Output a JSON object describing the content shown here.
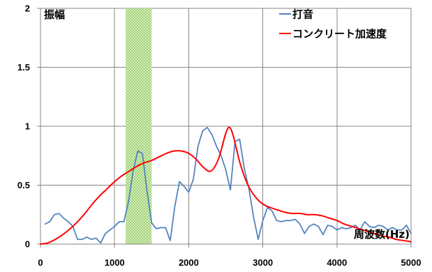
{
  "chart_data": {
    "type": "line",
    "xlabel": "周波数(Hz)",
    "ylabel": "振幅",
    "xlim": [
      0,
      5000
    ],
    "ylim": [
      0,
      2
    ],
    "x_ticks": [
      0,
      1000,
      2000,
      3000,
      4000,
      5000
    ],
    "y_ticks": [
      0,
      0.5,
      1,
      1.5,
      2
    ],
    "grid": {
      "x": true,
      "y": true
    },
    "legend": {
      "placement": "top-right"
    },
    "highlight_band": {
      "x_start": 1150,
      "x_end": 1500,
      "color": "#9fd16f"
    },
    "series": [
      {
        "name": "打音",
        "color": "#4f81bd",
        "smooth": false,
        "x": [
          62.5,
          125,
          187.5,
          250,
          312.5,
          375,
          437.5,
          500,
          562.5,
          625,
          687.5,
          750,
          812.5,
          875,
          937.5,
          1000,
          1062.5,
          1125,
          1187.5,
          1250,
          1312.5,
          1375,
          1437.5,
          1500,
          1562.5,
          1625,
          1687.5,
          1750,
          1812.5,
          1875,
          1937.5,
          2000,
          2062.5,
          2125,
          2187.5,
          2250,
          2312.5,
          2375,
          2437.5,
          2500,
          2562.5,
          2625,
          2687.5,
          2750,
          2812.5,
          2875,
          2937.5,
          3000,
          3062.5,
          3125,
          3187.5,
          3250,
          3312.5,
          3375,
          3437.5,
          3500,
          3562.5,
          3625,
          3687.5,
          3750,
          3812.5,
          3875,
          3937.5,
          4000,
          4062.5,
          4125,
          4187.5,
          4250,
          4312.5,
          4375,
          4437.5,
          4500,
          4562.5,
          4625,
          4687.5,
          4750,
          4812.5,
          4875,
          4937.5,
          5000
        ],
        "y": [
          0.17,
          0.19,
          0.25,
          0.26,
          0.22,
          0.19,
          0.15,
          0.04,
          0.04,
          0.06,
          0.04,
          0.05,
          0.01,
          0.09,
          0.12,
          0.15,
          0.19,
          0.19,
          0.36,
          0.62,
          0.79,
          0.77,
          0.45,
          0.18,
          0.13,
          0.14,
          0.14,
          0.03,
          0.32,
          0.53,
          0.49,
          0.44,
          0.55,
          0.83,
          0.96,
          0.99,
          0.93,
          0.83,
          0.75,
          0.63,
          0.46,
          0.87,
          0.89,
          0.64,
          0.47,
          0.23,
          0.04,
          0.2,
          0.31,
          0.28,
          0.2,
          0.19,
          0.2,
          0.2,
          0.21,
          0.17,
          0.09,
          0.15,
          0.17,
          0.15,
          0.08,
          0.16,
          0.15,
          0.12,
          0.14,
          0.13,
          0.14,
          0.16,
          0.12,
          0.19,
          0.15,
          0.14,
          0.16,
          0.15,
          0.12,
          0.14,
          0.12,
          0.12,
          0.16,
          0.09
        ]
      },
      {
        "name": "コンクリート加速度",
        "color": "#ff0000",
        "smooth": true,
        "x": [
          0,
          100,
          200,
          300,
          400,
          500,
          600,
          700,
          800,
          900,
          1000,
          1100,
          1200,
          1300,
          1400,
          1500,
          1600,
          1700,
          1800,
          1900,
          2000,
          2100,
          2200,
          2300,
          2400,
          2500,
          2550,
          2600,
          2700,
          2800,
          2900,
          3000,
          3100,
          3200,
          3300,
          3400,
          3500,
          3600,
          3700,
          3800,
          3900,
          4000,
          4100,
          4200,
          4300,
          4400,
          4500,
          4600,
          4700,
          4800,
          4900,
          5000
        ],
        "y": [
          0,
          0.01,
          0.04,
          0.08,
          0.13,
          0.19,
          0.26,
          0.34,
          0.41,
          0.47,
          0.53,
          0.58,
          0.62,
          0.66,
          0.69,
          0.71,
          0.74,
          0.77,
          0.79,
          0.79,
          0.77,
          0.72,
          0.65,
          0.62,
          0.72,
          0.94,
          0.99,
          0.92,
          0.67,
          0.5,
          0.4,
          0.34,
          0.31,
          0.29,
          0.27,
          0.26,
          0.26,
          0.25,
          0.25,
          0.24,
          0.22,
          0.2,
          0.17,
          0.15,
          0.13,
          0.11,
          0.09,
          0.07,
          0.06,
          0.04,
          0.03,
          0.02
        ]
      }
    ]
  }
}
